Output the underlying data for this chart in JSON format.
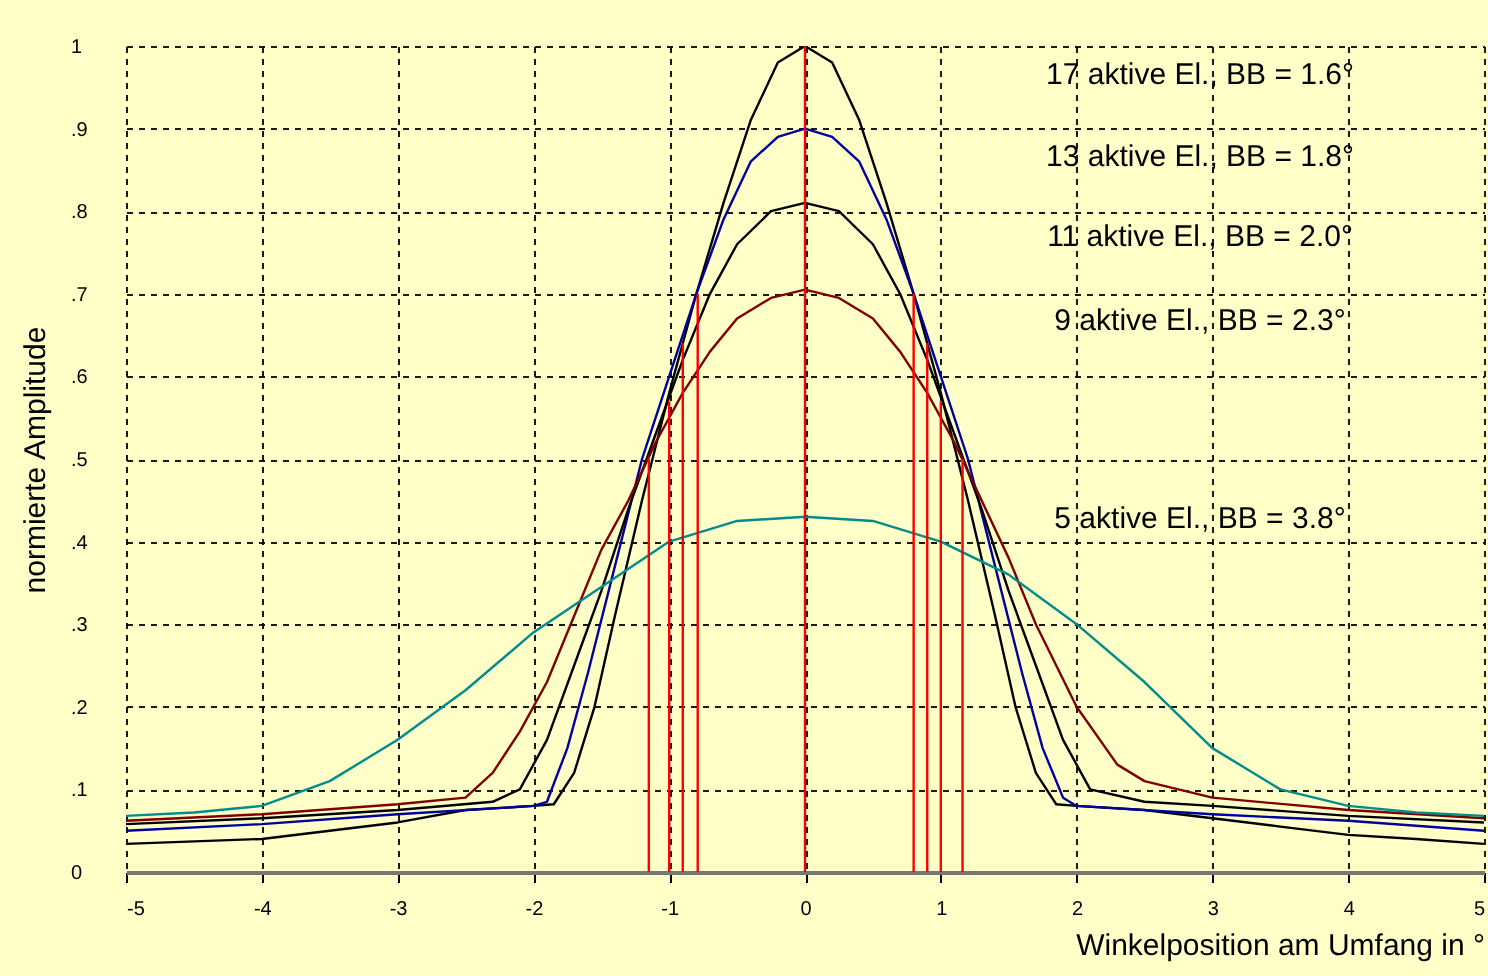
{
  "chart_data": {
    "type": "line",
    "xlabel": "Winkelposition am Umfang in °",
    "ylabel": "normierte Amplitude",
    "xlim": [
      -5,
      5
    ],
    "xticks": [
      -5,
      -4,
      -3,
      -2,
      -1,
      0,
      1,
      2,
      3,
      4,
      5
    ],
    "ylim": [
      0,
      1
    ],
    "yticks": [
      {
        "value": 0,
        "label": "0"
      },
      {
        "value": 0.1,
        "label": ".1"
      },
      {
        "value": 0.2,
        "label": ".2"
      },
      {
        "value": 0.3,
        "label": ".3"
      },
      {
        "value": 0.4,
        "label": ".4"
      },
      {
        "value": 0.5,
        "label": ".5"
      },
      {
        "value": 0.6,
        "label": ".6"
      },
      {
        "value": 0.7,
        "label": ".7"
      },
      {
        "value": 0.8,
        "label": ".8"
      },
      {
        "value": 0.9,
        "label": ".9"
      },
      {
        "value": 1,
        "label": "1"
      }
    ],
    "grid": true,
    "marker": "none",
    "line_style": "solid",
    "annotations": [
      "17 aktive El., BB = 1.6°",
      "13 aktive El., BB = 1.8°",
      "11 aktive El., BB = 2.0°",
      "9 aktive El., BB = 2.3°",
      "5 aktive El., BB = 3.8°"
    ],
    "series": [
      {
        "color": "#000000",
        "x": [
          -5,
          -4,
          -3,
          -2.5,
          -2,
          -1.85,
          -1.7,
          -1.55,
          -1.4,
          -1.2,
          -1,
          -0.8,
          -0.6,
          -0.4,
          -0.2,
          0,
          0.2,
          0.4,
          0.6,
          0.8,
          1,
          1.2,
          1.4,
          1.55,
          1.7,
          1.85,
          2,
          2.5,
          3,
          3.5,
          4,
          4.5,
          5
        ],
        "values": [
          0.034,
          0.04,
          0.06,
          0.075,
          0.08,
          0.082,
          0.12,
          0.2,
          0.31,
          0.45,
          0.58,
          0.7,
          0.81,
          0.91,
          0.98,
          1,
          0.98,
          0.91,
          0.81,
          0.7,
          0.58,
          0.45,
          0.31,
          0.2,
          0.12,
          0.082,
          0.08,
          0.075,
          0.065,
          0.055,
          0.045,
          0.04,
          0.034
        ]
      },
      {
        "color": "#0000a0",
        "x": [
          -5,
          -4,
          -3,
          -2,
          -1.9,
          -1.75,
          -1.6,
          -1.4,
          -1.2,
          -1,
          -0.8,
          -0.6,
          -0.4,
          -0.2,
          0,
          0.2,
          0.4,
          0.6,
          0.8,
          1,
          1.2,
          1.4,
          1.6,
          1.75,
          1.9,
          2,
          3,
          4,
          5
        ],
        "values": [
          0.05,
          0.058,
          0.07,
          0.08,
          0.085,
          0.15,
          0.24,
          0.37,
          0.5,
          0.6,
          0.7,
          0.79,
          0.86,
          0.89,
          0.9,
          0.89,
          0.86,
          0.79,
          0.7,
          0.6,
          0.5,
          0.37,
          0.24,
          0.15,
          0.09,
          0.08,
          0.07,
          0.062,
          0.05
        ]
      },
      {
        "color": "#000000",
        "x": [
          -5,
          -4,
          -3,
          -2.3,
          -2.1,
          -1.9,
          -1.7,
          -1.5,
          -1.3,
          -1.1,
          -0.9,
          -0.7,
          -0.5,
          -0.25,
          0,
          0.25,
          0.5,
          0.7,
          0.9,
          1.1,
          1.3,
          1.5,
          1.7,
          1.9,
          2.1,
          2.5,
          3,
          4,
          5
        ],
        "values": [
          0.058,
          0.065,
          0.075,
          0.085,
          0.1,
          0.16,
          0.25,
          0.34,
          0.44,
          0.53,
          0.62,
          0.7,
          0.76,
          0.8,
          0.81,
          0.8,
          0.76,
          0.7,
          0.62,
          0.53,
          0.44,
          0.34,
          0.25,
          0.16,
          0.1,
          0.085,
          0.08,
          0.068,
          0.06
        ]
      },
      {
        "color": "#800000",
        "x": [
          -5,
          -4,
          -3,
          -2.5,
          -2.3,
          -2.1,
          -1.9,
          -1.7,
          -1.5,
          -1.3,
          -1.1,
          -0.9,
          -0.7,
          -0.5,
          -0.25,
          0,
          0.25,
          0.5,
          0.7,
          0.9,
          1.1,
          1.3,
          1.5,
          1.7,
          2,
          2.3,
          2.5,
          3,
          4,
          5
        ],
        "values": [
          0.062,
          0.07,
          0.082,
          0.09,
          0.12,
          0.17,
          0.23,
          0.31,
          0.39,
          0.45,
          0.52,
          0.58,
          0.63,
          0.67,
          0.695,
          0.705,
          0.695,
          0.67,
          0.63,
          0.58,
          0.52,
          0.45,
          0.38,
          0.3,
          0.2,
          0.13,
          0.11,
          0.09,
          0.075,
          0.065
        ]
      },
      {
        "color": "#008c8c",
        "x": [
          -5,
          -4.5,
          -4,
          -3.5,
          -3,
          -2.5,
          -2,
          -1.5,
          -1,
          -0.5,
          0,
          0.5,
          1,
          1.5,
          2,
          2.5,
          3,
          3.5,
          4,
          4.5,
          5
        ],
        "values": [
          0.068,
          0.072,
          0.08,
          0.11,
          0.16,
          0.22,
          0.29,
          0.345,
          0.4,
          0.425,
          0.43,
          0.425,
          0.4,
          0.36,
          0.3,
          0.23,
          0.15,
          0.1,
          0.08,
          0.072,
          0.068
        ]
      },
      {
        "color": "#ff0000",
        "x": [
          0,
          0
        ],
        "values": [
          0,
          1
        ]
      },
      {
        "color": "#ff0000",
        "x": [
          -1.15,
          -1.15
        ],
        "values": [
          0,
          0.5
        ]
      },
      {
        "color": "#ff0000",
        "x": [
          -1,
          -1
        ],
        "values": [
          0,
          0.57
        ]
      },
      {
        "color": "#ff0000",
        "x": [
          -0.9,
          -0.9
        ],
        "values": [
          0,
          0.64
        ]
      },
      {
        "color": "#ff0000",
        "x": [
          -0.79,
          -0.79
        ],
        "values": [
          0,
          0.7
        ]
      },
      {
        "color": "#ff0000",
        "x": [
          0.8,
          0.8
        ],
        "values": [
          0,
          0.7
        ]
      },
      {
        "color": "#ff0000",
        "x": [
          0.9,
          0.9
        ],
        "values": [
          0,
          0.64
        ]
      },
      {
        "color": "#ff0000",
        "x": [
          1,
          1
        ],
        "values": [
          0,
          0.57
        ]
      },
      {
        "color": "#ff0000",
        "x": [
          1.16,
          1.16
        ],
        "values": [
          0,
          0.5
        ]
      }
    ]
  }
}
